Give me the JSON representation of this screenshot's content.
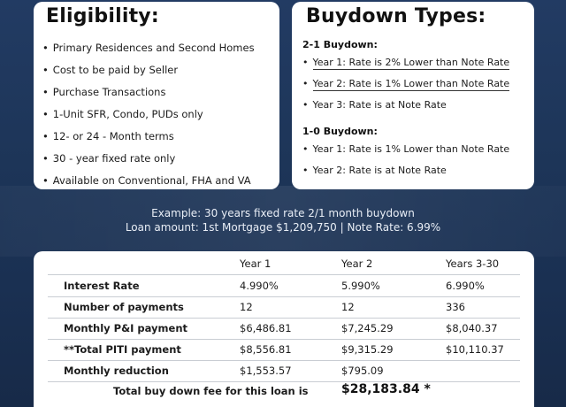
{
  "eligibility": {
    "title": "Eligibility:",
    "items": [
      "Primary Residences and Second Homes",
      "Cost to be paid by Seller",
      "Purchase Transactions",
      "1-Unit SFR, Condo, PUDs only",
      "12- or 24 - Month terms",
      "30 - year fixed rate only",
      "Available on Conventional, FHA and VA"
    ]
  },
  "buydown": {
    "title": "Buydown Types:",
    "type_21": {
      "heading": "2-1 Buydown:",
      "items": [
        "Year 1: Rate is 2% Lower than Note Rate",
        "Year 2: Rate is 1% Lower than Note Rate",
        "Year 3: Rate is at Note Rate"
      ]
    },
    "type_10": {
      "heading": "1-0 Buydown:",
      "items": [
        "Year 1: Rate is 1% Lower than Note Rate",
        "Year 2: Rate is at Note Rate"
      ]
    }
  },
  "example": {
    "line1": "Example: 30 years fixed rate 2/1 month buydown",
    "line2": "Loan amount:  1st Mortgage $1,209,750  |  Note Rate: 6.99%"
  },
  "table": {
    "headers": [
      "Year 1",
      "Year 2",
      "Years 3-30"
    ],
    "rows": [
      {
        "label": "Interest Rate",
        "values": [
          "4.990%",
          "5.990%",
          "6.990%"
        ]
      },
      {
        "label": "Number of payments",
        "values": [
          "12",
          "12",
          "336"
        ]
      },
      {
        "label": "Monthly P&I payment",
        "values": [
          "$6,486.81",
          "$7,245.29",
          "$8,040.37"
        ]
      },
      {
        "label": "**Total PITI payment",
        "values": [
          "$8,556.81",
          "$9,315.29",
          "$10,110.37"
        ]
      },
      {
        "label": "Monthly reduction",
        "values": [
          "$1,553.57",
          "$795.09",
          ""
        ]
      }
    ],
    "total_label": "Total buy down fee for this loan is",
    "total_value": "$28,183.84 *"
  }
}
